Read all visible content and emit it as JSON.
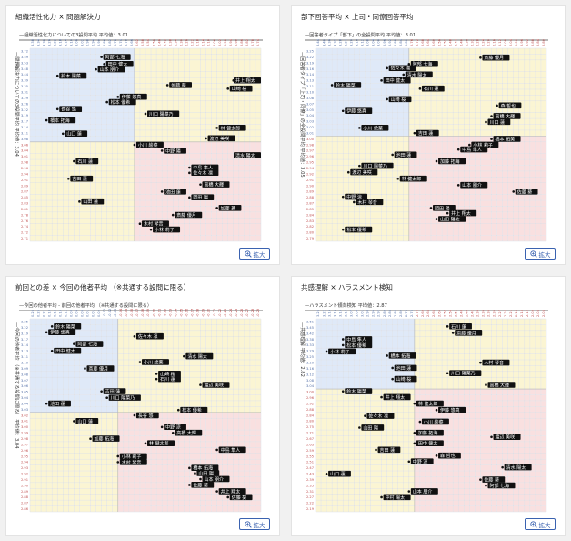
{
  "zoom_label": "拡大",
  "colors": {
    "q_tl": "#dfe9f8",
    "q_tr": "#fbf5d3",
    "q_bl": "#fbf5d3",
    "q_br": "#f9e0e0",
    "label_bg": "#111111"
  },
  "panels": [
    {
      "title": "組織活性化力 × 問題解決力",
      "chart_data": {
        "type": "scatter",
        "title": "—組織活性化力についての3設問平均 平均値：3.01",
        "ylabel": "—問題解決力についての3設問平均 平均値：3.04",
        "x_ticks": [
          "3.38",
          "3.34",
          "3.30",
          "3.26",
          "3.22",
          "3.18",
          "3.14",
          "3.10",
          "3.06",
          "3.02",
          "2.98",
          "2.94",
          "2.90",
          "2.86",
          "2.82",
          "2.78",
          "2.74",
          "2.70",
          "2.66",
          "2.62",
          "2.58",
          "2.54",
          "2.50",
          "2.46",
          "2.42",
          "2.38",
          "2.34",
          "2.30",
          "2.26",
          "2.22",
          "2.18",
          "2.14",
          "2.10",
          "2.06",
          "2.02",
          "2.98",
          "2.94",
          "2.90",
          "2.86",
          "2.82",
          "2.78",
          "2.74"
        ],
        "y_ticks": [
          "3.72",
          "3.59",
          "3.53",
          "3.48",
          "3.44",
          "3.39",
          "3.35",
          "3.31",
          "3.29",
          "3.26",
          "3.22",
          "3.19",
          "3.17",
          "3.14",
          "3.11",
          "3.08",
          "3.06",
          "3.04",
          "3.01",
          "2.98",
          "2.96",
          "2.94",
          "2.91",
          "2.89",
          "2.87",
          "2.85",
          "2.83",
          "2.81",
          "2.78",
          "2.76",
          "2.74",
          "2.72",
          "2.71"
        ],
        "x_range": [
          0,
          42
        ],
        "y_range": [
          0,
          33
        ],
        "x_div": 19,
        "y_div": 16,
        "points": [
          {
            "name": "阿部 七海",
            "x": 13,
            "y": 1.5
          },
          {
            "name": "田中 健太",
            "x": 13.5,
            "y": 2.7
          },
          {
            "name": "山本 朋介",
            "x": 12,
            "y": 3.6
          },
          {
            "name": "鈴木 陽菜",
            "x": 5,
            "y": 4.7
          },
          {
            "name": "佐藤 葵",
            "x": 25,
            "y": 6.3
          },
          {
            "name": "井上 翔太",
            "x": 37,
            "y": 5.5
          },
          {
            "name": "山崎 桜",
            "x": 36,
            "y": 6.9
          },
          {
            "name": "伊藤 悠真",
            "x": 16,
            "y": 8.3
          },
          {
            "name": "松本 優希",
            "x": 14,
            "y": 9.2
          },
          {
            "name": "長谷 悠",
            "x": 5,
            "y": 10.4
          },
          {
            "name": "川口 陽菜乃",
            "x": 21,
            "y": 11.2
          },
          {
            "name": "橋本 拓海",
            "x": 3,
            "y": 12.3
          },
          {
            "name": "林 健太郎",
            "x": 34,
            "y": 13.6
          },
          {
            "name": "山口 蓮",
            "x": 6,
            "y": 14.6
          },
          {
            "name": "渡辺 美咲",
            "x": 32,
            "y": 15.4
          },
          {
            "name": "小川 絵菜",
            "x": 19,
            "y": 16.5
          },
          {
            "name": "中野 陽",
            "x": 24,
            "y": 17.5
          },
          {
            "name": "清水 陽太",
            "x": 39,
            "y": 18.3
          },
          {
            "name": "石川 蓮",
            "x": 8,
            "y": 19.3
          },
          {
            "name": "中島 隼人",
            "x": 29,
            "y": 20.4
          },
          {
            "name": "佐々木 凛",
            "x": 29,
            "y": 21.3
          },
          {
            "name": "吉田 蓮",
            "x": 7,
            "y": 22.3
          },
          {
            "name": "高橋 大輝",
            "x": 31,
            "y": 23.3
          },
          {
            "name": "池田 蓮",
            "x": 24,
            "y": 24.5
          },
          {
            "name": "岡田 陽",
            "x": 29,
            "y": 25.5
          },
          {
            "name": "山田 蓮",
            "x": 9,
            "y": 26.2
          },
          {
            "name": "加藤 蒼",
            "x": 34,
            "y": 27.3
          },
          {
            "name": "斎藤 優月",
            "x": 26,
            "y": 28.5
          },
          {
            "name": "木村 琴音",
            "x": 20,
            "y": 30
          },
          {
            "name": "小林 莉子",
            "x": 22,
            "y": 31
          }
        ]
      }
    },
    {
      "title": "部下回答平均 × 上司・同僚回答平均",
      "chart_data": {
        "type": "scatter",
        "title": "—回答者タイプ「部下」の全設問平均 平均値：3.01",
        "ylabel": "—回答者タイプ「上司・同僚」の全設問平均 平均値：3.05",
        "x_ticks": [
          "3.44",
          "3.40",
          "3.36",
          "3.32",
          "3.28",
          "3.24",
          "3.20",
          "3.16",
          "3.12",
          "3.08",
          "3.04",
          "3.00",
          "2.96",
          "2.92",
          "2.88",
          "2.84",
          "2.80",
          "2.76",
          "2.72",
          "2.68",
          "2.64",
          "2.60",
          "2.56",
          "2.52",
          "2.48",
          "2.44",
          "2.40",
          "2.36",
          "2.32",
          "2.28",
          "2.24",
          "2.20",
          "2.16",
          "2.12",
          "2.08",
          "2.04",
          "2.00",
          "2.96",
          "2.92",
          "2.88",
          "2.84",
          "2.80"
        ],
        "y_ticks": [
          "3.25",
          "3.22",
          "3.19",
          "3.16",
          "3.14",
          "3.13",
          "3.11",
          "3.10",
          "3.08",
          "3.07",
          "3.05",
          "3.04",
          "3.03",
          "3.02",
          "3.01",
          "3.00",
          "2.98",
          "2.97",
          "2.96",
          "2.95",
          "2.94",
          "2.92",
          "2.91",
          "2.90",
          "2.89",
          "2.88",
          "2.87",
          "2.85",
          "2.84",
          "2.83",
          "2.82",
          "2.80",
          "2.79"
        ],
        "x_range": [
          0,
          42
        ],
        "y_range": [
          0,
          33
        ],
        "x_div": 17,
        "y_div": 15,
        "points": [
          {
            "name": "斎藤 優月",
            "x": 30,
            "y": 1.6
          },
          {
            "name": "阿部 七海",
            "x": 17,
            "y": 2.7
          },
          {
            "name": "佐々木 凛",
            "x": 13,
            "y": 3.4
          },
          {
            "name": "清水 陽太",
            "x": 16,
            "y": 4.5
          },
          {
            "name": "田中 健太",
            "x": 12,
            "y": 5.5
          },
          {
            "name": "鈴木 陽菜",
            "x": 3,
            "y": 6.3
          },
          {
            "name": "石川 蓮",
            "x": 19,
            "y": 6.9
          },
          {
            "name": "山崎 桜",
            "x": 13,
            "y": 8.7
          },
          {
            "name": "森 哲也",
            "x": 33,
            "y": 9.8
          },
          {
            "name": "伊藤 悠真",
            "x": 5,
            "y": 10.7
          },
          {
            "name": "高橋 大輝",
            "x": 32,
            "y": 11.6
          },
          {
            "name": "川口 蓮",
            "x": 31,
            "y": 12.6
          },
          {
            "name": "小川 絵菜",
            "x": 8,
            "y": 13.6
          },
          {
            "name": "吉田 蓮",
            "x": 18,
            "y": 14.5
          },
          {
            "name": "橋本 拓美",
            "x": 32,
            "y": 15.5
          },
          {
            "name": "小林 莉子",
            "x": 28,
            "y": 16.5
          },
          {
            "name": "中島 隼人",
            "x": 26,
            "y": 17.3
          },
          {
            "name": "池田 蓮",
            "x": 14,
            "y": 18.2
          },
          {
            "name": "加藤 拓海",
            "x": 22,
            "y": 19.3
          },
          {
            "name": "川口 陽菜乃",
            "x": 8,
            "y": 20.1
          },
          {
            "name": "渡辺 美咲",
            "x": 6,
            "y": 21.2
          },
          {
            "name": "林 健太郎",
            "x": 15,
            "y": 22.3
          },
          {
            "name": "山本 朋介",
            "x": 26,
            "y": 23.4
          },
          {
            "name": "佐藤 葵",
            "x": 36,
            "y": 24.5
          },
          {
            "name": "中野 涼",
            "x": 5,
            "y": 25.4
          },
          {
            "name": "木村 琴音",
            "x": 7,
            "y": 26.3
          },
          {
            "name": "岡田 陽",
            "x": 21,
            "y": 27.3
          },
          {
            "name": "井上 翔太",
            "x": 24,
            "y": 28.2
          },
          {
            "name": "山田 陽太",
            "x": 22,
            "y": 29.2
          },
          {
            "name": "松本 優希",
            "x": 5,
            "y": 31
          }
        ]
      }
    },
    {
      "title": "前回との差 × 今回の他者平均 （※共通する設問に限る）",
      "chart_data": {
        "type": "scatter",
        "title": "—今回の他者平均 - 前回の他者平均 （※共通する設問に限る）",
        "ylabel": "—今回の他者平均 （※共通する設問に限る） 平均値：3.04",
        "x_ticks": [
          "0.26",
          "0.23",
          "0.21",
          "0.18",
          "0.16",
          "0.13",
          "0.11",
          "0.08",
          "0.06",
          "0.03",
          "0.01",
          "0.01",
          "0.00",
          "-0.01",
          "-0.02",
          "-0.03",
          "-0.04",
          "-0.05",
          "-0.06",
          "-0.07",
          "-0.08",
          "-0.09",
          "-0.10",
          "-0.11",
          "-0.12",
          "-0.13",
          "-0.14",
          "-0.15",
          "-0.16",
          "-0.17",
          "-0.18",
          "-0.19",
          "-0.20",
          "-0.21",
          "-0.22",
          "-0.23",
          "-0.24",
          "-0.25",
          "-0.26",
          "-0.27",
          "-0.28",
          "-0.29"
        ],
        "y_ticks": [
          "3.25",
          "3.22",
          "3.19",
          "3.17",
          "3.14",
          "3.13",
          "3.11",
          "3.10",
          "3.09",
          "3.08",
          "3.07",
          "3.06",
          "3.05",
          "3.04",
          "3.04",
          "3.03",
          "3.02",
          "3.01",
          "3.00",
          "2.99",
          "2.98",
          "2.97",
          "2.96",
          "2.95",
          "2.94",
          "2.93",
          "2.92",
          "2.91",
          "2.90",
          "2.89",
          "2.88",
          "2.87",
          "2.86"
        ],
        "x_range": [
          0,
          42
        ],
        "y_range": [
          0,
          33
        ],
        "x_div": 16,
        "y_div": 16,
        "points": [
          {
            "name": "鈴木 陽菜",
            "x": 4,
            "y": 1.3
          },
          {
            "name": "伊藤 悠真",
            "x": 3,
            "y": 2.3
          },
          {
            "name": "佐々木 凛",
            "x": 19,
            "y": 3
          },
          {
            "name": "阿部 七海",
            "x": 8,
            "y": 4.3
          },
          {
            "name": "田中 健太",
            "x": 4,
            "y": 5.5
          },
          {
            "name": "清水 陽太",
            "x": 28,
            "y": 6.4
          },
          {
            "name": "小川 絵菜",
            "x": 20,
            "y": 7.4
          },
          {
            "name": "斎藤 優月",
            "x": 10,
            "y": 8.5
          },
          {
            "name": "山崎 桜",
            "x": 23,
            "y": 9.4
          },
          {
            "name": "石川 蓮",
            "x": 23,
            "y": 10.3
          },
          {
            "name": "渡辺 美咲",
            "x": 31,
            "y": 11.3
          },
          {
            "name": "吉田 蓮",
            "x": 13,
            "y": 12.4
          },
          {
            "name": "川口 陽菜乃",
            "x": 14,
            "y": 13.5
          },
          {
            "name": "池田 蓮",
            "x": 3,
            "y": 14.5
          },
          {
            "name": "松本 優希",
            "x": 27,
            "y": 15.6
          },
          {
            "name": "長谷 悠",
            "x": 19,
            "y": 16.5
          },
          {
            "name": "山口 蓮",
            "x": 8,
            "y": 17.5
          },
          {
            "name": "中野 涼",
            "x": 24,
            "y": 18.5
          },
          {
            "name": "高橋 大輝",
            "x": 26,
            "y": 19.5
          },
          {
            "name": "加藤 拓海",
            "x": 11,
            "y": 20.5
          },
          {
            "name": "林 健太郎",
            "x": 21,
            "y": 21.3
          },
          {
            "name": "中島 隼人",
            "x": 34,
            "y": 22.4
          },
          {
            "name": "小林 莉子",
            "x": 16,
            "y": 23.5
          },
          {
            "name": "木村 琴音",
            "x": 16,
            "y": 24.5
          },
          {
            "name": "橋本 拓海",
            "x": 29,
            "y": 25.5
          },
          {
            "name": "山田 陽",
            "x": 30,
            "y": 26.4
          },
          {
            "name": "山本 朋介",
            "x": 31,
            "y": 27.4
          },
          {
            "name": "佐藤 葵",
            "x": 29,
            "y": 28.4
          },
          {
            "name": "井上 翔太",
            "x": 34,
            "y": 29.5
          },
          {
            "name": "佐藤 葵",
            "x": 36,
            "y": 30.5
          }
        ]
      }
    },
    {
      "title": "共感理解 × ハラスメント検知",
      "chart_data": {
        "type": "scatter",
        "title": "—ハラスメント傾向検知 平均値：2.87",
        "ylabel": "—共感理解 平均値：2.82",
        "x_ticks": [
          "3.25",
          "3.22",
          "3.19",
          "3.16",
          "3.13",
          "3.10",
          "3.07",
          "3.04",
          "3.01",
          "2.98",
          "2.95",
          "2.92",
          "2.89",
          "2.86",
          "2.83",
          "2.80",
          "2.78",
          "2.75",
          "2.72",
          "2.69",
          "2.66",
          "2.63",
          "2.60",
          "2.57",
          "2.54",
          "2.51",
          "2.48",
          "2.45",
          "2.42",
          "2.39",
          "2.36",
          "2.33",
          "2.30",
          "2.27",
          "2.24",
          "2.21",
          "2.18",
          "2.15",
          "2.12",
          "2.09",
          "2.06",
          "2.03"
        ],
        "y_ticks": [
          "3.61",
          "3.45",
          "3.42",
          "3.38",
          "3.33",
          "3.29",
          "3.25",
          "3.20",
          "3.16",
          "3.12",
          "3.08",
          "3.04",
          "3.00",
          "2.96",
          "2.92",
          "2.88",
          "2.84",
          "2.80",
          "2.75",
          "2.71",
          "2.67",
          "2.63",
          "2.59",
          "2.55",
          "2.51",
          "2.47",
          "2.43",
          "2.39",
          "2.35",
          "2.31",
          "2.27",
          "2.22",
          "2.19"
        ],
        "x_range": [
          0,
          42
        ],
        "y_range": [
          0,
          33
        ],
        "x_div": 18,
        "y_div": 12,
        "points": [
          {
            "name": "石川 蓮",
            "x": 24,
            "y": 1.3
          },
          {
            "name": "斎藤 優月",
            "x": 25,
            "y": 2.4
          },
          {
            "name": "中島 隼人",
            "x": 5,
            "y": 3.5
          },
          {
            "name": "松本 優希",
            "x": 5,
            "y": 4.5
          },
          {
            "name": "小林 莉子",
            "x": 2,
            "y": 5.6
          },
          {
            "name": "橋本 拓海",
            "x": 13,
            "y": 6.3
          },
          {
            "name": "木村 琴音",
            "x": 30,
            "y": 7.5
          },
          {
            "name": "池田 蓮",
            "x": 14,
            "y": 8.4
          },
          {
            "name": "川口 陽菜乃",
            "x": 24,
            "y": 9.3
          },
          {
            "name": "山崎 桜",
            "x": 14,
            "y": 10.3
          },
          {
            "name": "高橋 大輝",
            "x": 31,
            "y": 11.3
          },
          {
            "name": "鈴木 陽菜",
            "x": 5,
            "y": 12.4
          },
          {
            "name": "井上 翔太",
            "x": 12,
            "y": 13.4
          },
          {
            "name": "林 健太郎",
            "x": 18,
            "y": 14.5
          },
          {
            "name": "伊藤 悠真",
            "x": 22,
            "y": 15.6
          },
          {
            "name": "佐々木 凛",
            "x": 9,
            "y": 16.6
          },
          {
            "name": "小川 絵菜",
            "x": 19,
            "y": 17.6
          },
          {
            "name": "山田 陽",
            "x": 8,
            "y": 18.6
          },
          {
            "name": "加藤 拓海",
            "x": 18,
            "y": 19.5
          },
          {
            "name": "渡辺 美咲",
            "x": 32,
            "y": 20.2
          },
          {
            "name": "田中 健太",
            "x": 18,
            "y": 21.3
          },
          {
            "name": "吉田 蓮",
            "x": 11,
            "y": 22.4
          },
          {
            "name": "森 哲也",
            "x": 22,
            "y": 23.4
          },
          {
            "name": "中野 涼",
            "x": 17,
            "y": 24.4
          },
          {
            "name": "清水 陽太",
            "x": 34,
            "y": 25.4
          },
          {
            "name": "山口 蓮",
            "x": 2,
            "y": 26.5
          },
          {
            "name": "佐藤 葵",
            "x": 30,
            "y": 27.5
          },
          {
            "name": "阿部 七海",
            "x": 31,
            "y": 28.5
          },
          {
            "name": "山本 朋介",
            "x": 17,
            "y": 29.5
          },
          {
            "name": "中村 陽太",
            "x": 12,
            "y": 30.5
          }
        ]
      }
    }
  ]
}
